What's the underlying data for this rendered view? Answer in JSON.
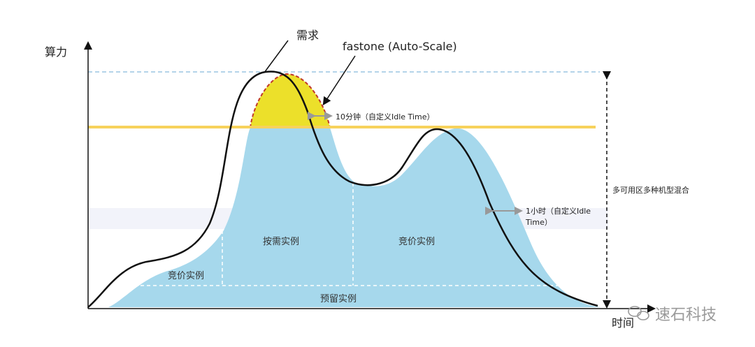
{
  "labels": {
    "y_axis": "算力",
    "x_axis": "时间",
    "demand": "需求",
    "fastone": "fastone (Auto-Scale)",
    "idle_short": "10分钟（自定义Idle Time）",
    "idle_long_line1": "1小时（自定义Idle",
    "idle_long_line2": "Time）",
    "multi_zone": "多可用区多种机型混合",
    "spot_left": "竞价实例",
    "on_demand": "按需实例",
    "spot_right": "竞价实例",
    "reserved": "预留实例"
  },
  "watermark": {
    "icon": "wechat-icon",
    "text": "速石科技"
  },
  "colors": {
    "capacity_fill": "#a6d8ec",
    "burst_fill": "#ece02a",
    "burst_outline": "#c0392b",
    "threshold_line": "#f7d25c",
    "peak_line": "#9cc6e2",
    "demand_curve": "#111111",
    "band": "#f2f3fa"
  }
}
